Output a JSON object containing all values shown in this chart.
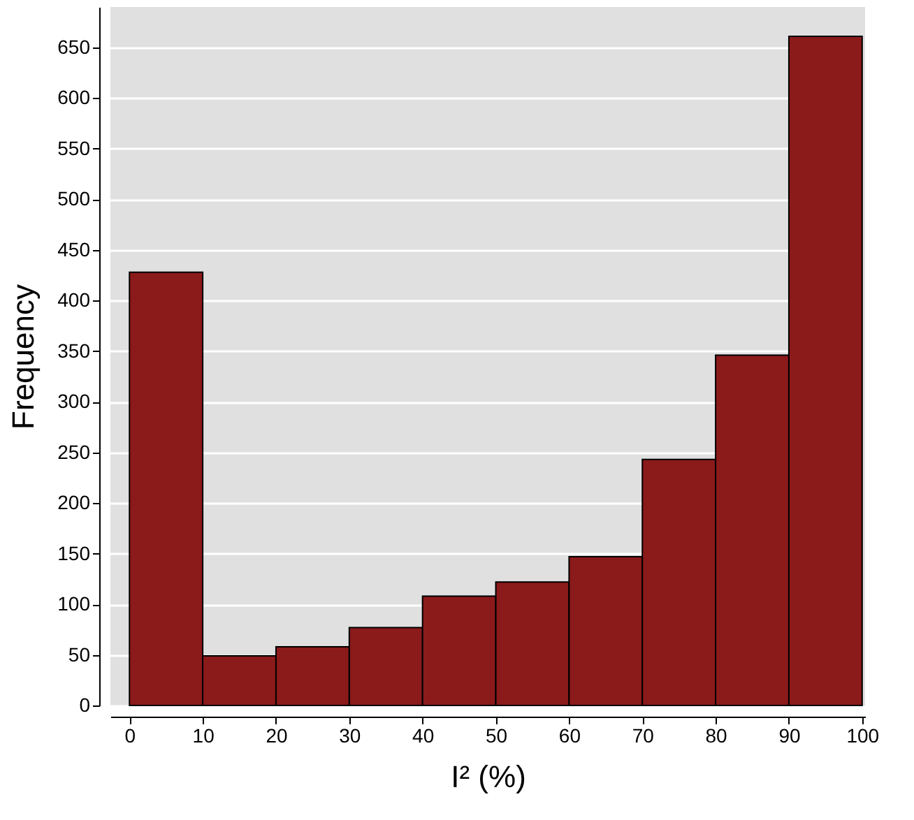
{
  "chart_data": {
    "type": "histogram",
    "xlabel": "I² (%)",
    "ylabel": "Frequency",
    "bins": [
      0,
      10,
      20,
      30,
      40,
      50,
      60,
      70,
      80,
      90,
      100
    ],
    "values": [
      428,
      49,
      58,
      77,
      108,
      122,
      147,
      243,
      346,
      661
    ],
    "color": "#8b1a1a",
    "xlim": [
      -2.6,
      100.4
    ],
    "xticks": [
      0,
      10,
      20,
      30,
      40,
      50,
      60,
      70,
      80,
      90,
      100
    ],
    "ylim": [
      0,
      690
    ],
    "yticks": [
      0,
      50,
      100,
      150,
      200,
      250,
      300,
      350,
      400,
      450,
      500,
      550,
      600,
      650
    ],
    "grid": "y"
  }
}
